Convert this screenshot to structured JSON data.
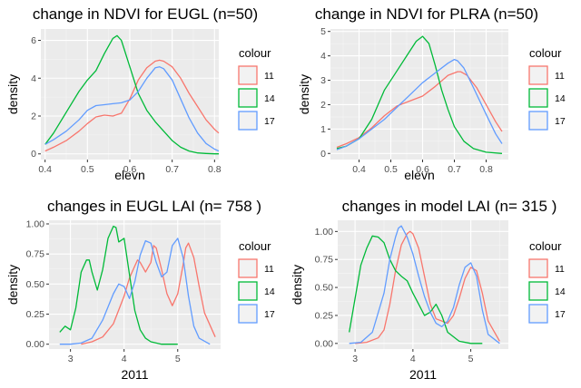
{
  "chart_data": [
    {
      "type": "line",
      "subtype": "density",
      "title": "change in NDVI for EUGL (n=50)",
      "xlabel": "elevn",
      "ylabel": "density",
      "xlim": [
        0.39,
        0.81
      ],
      "ylim": [
        -0.3,
        6.6
      ],
      "xticks": [
        0.4,
        0.5,
        0.6,
        0.7,
        0.8
      ],
      "xtick_labels": [
        "0.4",
        "0.5",
        "0.6",
        "0.7",
        "0.8"
      ],
      "yticks": [
        0,
        2,
        4,
        6
      ],
      "ytick_labels": [
        "0",
        "2",
        "4",
        "6"
      ],
      "grid": true,
      "legend": {
        "title": "colour",
        "position": "right",
        "entries": [
          "11",
          "14",
          "17"
        ]
      },
      "series": [
        {
          "name": "11",
          "color": "#F8766D",
          "x": [
            0.4,
            0.42,
            0.45,
            0.48,
            0.5,
            0.52,
            0.54,
            0.56,
            0.58,
            0.6,
            0.62,
            0.64,
            0.66,
            0.67,
            0.68,
            0.7,
            0.72,
            0.74,
            0.76,
            0.78,
            0.8,
            0.81
          ],
          "y": [
            0.15,
            0.35,
            0.7,
            1.2,
            1.6,
            1.95,
            2.05,
            2.0,
            2.15,
            2.9,
            3.9,
            4.55,
            4.9,
            4.95,
            4.9,
            4.6,
            4.0,
            3.2,
            2.5,
            1.8,
            1.3,
            1.1
          ]
        },
        {
          "name": "14",
          "color": "#00BA38",
          "x": [
            0.4,
            0.42,
            0.45,
            0.48,
            0.5,
            0.52,
            0.54,
            0.56,
            0.57,
            0.58,
            0.6,
            0.62,
            0.64,
            0.66,
            0.68,
            0.7,
            0.72,
            0.74,
            0.76,
            0.78,
            0.8,
            0.81
          ],
          "y": [
            0.5,
            1.1,
            2.2,
            3.3,
            3.9,
            4.4,
            5.3,
            6.1,
            6.25,
            6.0,
            4.6,
            3.2,
            2.3,
            1.7,
            1.2,
            0.7,
            0.35,
            0.15,
            0.05,
            0.02,
            0.0,
            0.0
          ]
        },
        {
          "name": "17",
          "color": "#619CFF",
          "x": [
            0.4,
            0.42,
            0.45,
            0.48,
            0.5,
            0.52,
            0.54,
            0.56,
            0.58,
            0.6,
            0.62,
            0.64,
            0.66,
            0.67,
            0.68,
            0.7,
            0.72,
            0.74,
            0.76,
            0.78,
            0.8,
            0.81
          ],
          "y": [
            0.5,
            0.75,
            1.2,
            1.8,
            2.3,
            2.55,
            2.6,
            2.65,
            2.7,
            2.85,
            3.3,
            4.0,
            4.55,
            4.6,
            4.5,
            3.9,
            2.9,
            1.9,
            1.1,
            0.55,
            0.25,
            0.15
          ]
        }
      ]
    },
    {
      "type": "line",
      "subtype": "density",
      "title": "change in NDVI for PLRA (n=50)",
      "xlabel": "elevn",
      "ylabel": "density",
      "xlim": [
        0.31,
        0.87
      ],
      "ylim": [
        -0.25,
        5.1
      ],
      "xticks": [
        0.4,
        0.5,
        0.6,
        0.7,
        0.8
      ],
      "xtick_labels": [
        "0.4",
        "0.5",
        "0.6",
        "0.7",
        "0.8"
      ],
      "yticks": [
        0,
        1,
        2,
        3,
        4,
        5
      ],
      "ytick_labels": [
        "0",
        "1",
        "2",
        "3",
        "4",
        "5"
      ],
      "grid": true,
      "legend": {
        "title": "colour",
        "position": "right",
        "entries": [
          "11",
          "14",
          "17"
        ]
      },
      "series": [
        {
          "name": "11",
          "color": "#F8766D",
          "x": [
            0.33,
            0.36,
            0.4,
            0.44,
            0.48,
            0.52,
            0.56,
            0.6,
            0.64,
            0.68,
            0.71,
            0.72,
            0.74,
            0.77,
            0.8,
            0.83,
            0.85
          ],
          "y": [
            0.25,
            0.4,
            0.65,
            1.05,
            1.55,
            1.95,
            2.15,
            2.35,
            2.75,
            3.2,
            3.35,
            3.35,
            3.2,
            2.7,
            2.0,
            1.3,
            0.9
          ]
        },
        {
          "name": "14",
          "color": "#00BA38",
          "x": [
            0.33,
            0.36,
            0.4,
            0.44,
            0.48,
            0.52,
            0.55,
            0.58,
            0.6,
            0.62,
            0.64,
            0.66,
            0.68,
            0.7,
            0.73,
            0.76,
            0.8,
            0.85
          ],
          "y": [
            0.2,
            0.3,
            0.6,
            1.4,
            2.6,
            3.4,
            4.0,
            4.6,
            4.8,
            4.5,
            3.6,
            2.6,
            1.8,
            1.1,
            0.5,
            0.2,
            0.05,
            0.0
          ]
        },
        {
          "name": "17",
          "color": "#619CFF",
          "x": [
            0.33,
            0.36,
            0.4,
            0.44,
            0.48,
            0.52,
            0.56,
            0.6,
            0.64,
            0.68,
            0.7,
            0.71,
            0.73,
            0.76,
            0.8,
            0.83,
            0.85
          ],
          "y": [
            0.15,
            0.3,
            0.6,
            1.0,
            1.4,
            1.9,
            2.4,
            2.9,
            3.3,
            3.7,
            3.85,
            3.8,
            3.5,
            2.7,
            1.6,
            0.8,
            0.4
          ]
        }
      ]
    },
    {
      "type": "line",
      "subtype": "density",
      "title": "changes in EUGL LAI (n= 758 )",
      "xlabel": "2011",
      "ylabel": "density",
      "xlim": [
        2.6,
        5.8
      ],
      "ylim": [
        -0.04,
        1.03
      ],
      "xticks": [
        3,
        4,
        5
      ],
      "xtick_labels": [
        "3",
        "4",
        "5"
      ],
      "yticks": [
        0,
        0.25,
        0.5,
        0.75,
        1.0
      ],
      "ytick_labels": [
        "0.00",
        "0.25",
        "0.50",
        "0.75",
        "1.00"
      ],
      "grid": true,
      "legend": {
        "title": "colour",
        "position": "right",
        "entries": [
          "11",
          "14",
          "17"
        ]
      },
      "series": [
        {
          "name": "11",
          "color": "#F8766D",
          "x": [
            3.2,
            3.4,
            3.6,
            3.8,
            4.0,
            4.1,
            4.2,
            4.25,
            4.3,
            4.4,
            4.5,
            4.55,
            4.6,
            4.7,
            4.8,
            4.9,
            5.0,
            5.1,
            5.15,
            5.2,
            5.3,
            5.4,
            5.5,
            5.7
          ],
          "y": [
            0.0,
            0.02,
            0.06,
            0.17,
            0.4,
            0.55,
            0.65,
            0.7,
            0.68,
            0.6,
            0.68,
            0.82,
            0.8,
            0.62,
            0.42,
            0.32,
            0.42,
            0.66,
            0.8,
            0.84,
            0.72,
            0.48,
            0.26,
            0.06
          ]
        },
        {
          "name": "14",
          "color": "#00BA38",
          "x": [
            2.8,
            2.9,
            3.0,
            3.1,
            3.2,
            3.3,
            3.35,
            3.4,
            3.5,
            3.6,
            3.7,
            3.8,
            3.85,
            3.9,
            4.0,
            4.1,
            4.2,
            4.3,
            4.4,
            4.5,
            4.6,
            4.7,
            5.0
          ],
          "y": [
            0.1,
            0.15,
            0.12,
            0.3,
            0.6,
            0.7,
            0.7,
            0.6,
            0.45,
            0.62,
            0.88,
            0.98,
            0.97,
            0.85,
            0.88,
            0.58,
            0.28,
            0.12,
            0.05,
            0.02,
            0.01,
            0.0,
            0.0
          ]
        },
        {
          "name": "17",
          "color": "#619CFF",
          "x": [
            2.8,
            3.0,
            3.2,
            3.4,
            3.6,
            3.8,
            3.9,
            4.0,
            4.1,
            4.2,
            4.3,
            4.4,
            4.5,
            4.6,
            4.7,
            4.8,
            4.9,
            5.0,
            5.1,
            5.2,
            5.3,
            5.4,
            5.6
          ],
          "y": [
            0.0,
            0.0,
            0.01,
            0.05,
            0.2,
            0.42,
            0.5,
            0.48,
            0.38,
            0.52,
            0.74,
            0.86,
            0.84,
            0.68,
            0.56,
            0.6,
            0.82,
            0.88,
            0.72,
            0.4,
            0.15,
            0.05,
            0.0
          ]
        }
      ]
    },
    {
      "type": "line",
      "subtype": "density",
      "title": "changes in model LAI (n= 315 )",
      "xlabel": "2011",
      "ylabel": "density",
      "xlim": [
        2.7,
        5.65
      ],
      "ylim": [
        -0.05,
        1.1
      ],
      "xticks": [
        3,
        4,
        5
      ],
      "xtick_labels": [
        "3",
        "4",
        "5"
      ],
      "yticks": [
        0,
        0.25,
        0.5,
        0.75,
        1.0
      ],
      "ytick_labels": [
        "0.00",
        "0.25",
        "0.50",
        "0.75",
        "1.00"
      ],
      "grid": true,
      "legend": {
        "title": "colour",
        "position": "right",
        "entries": [
          "11",
          "14",
          "17"
        ]
      },
      "series": [
        {
          "name": "11",
          "color": "#F8766D",
          "x": [
            3.0,
            3.2,
            3.4,
            3.5,
            3.6,
            3.7,
            3.8,
            3.9,
            3.95,
            4.0,
            4.1,
            4.2,
            4.3,
            4.4,
            4.5,
            4.6,
            4.7,
            4.8,
            4.9,
            5.0,
            5.1,
            5.2,
            5.3,
            5.5
          ],
          "y": [
            0.0,
            0.01,
            0.05,
            0.12,
            0.35,
            0.65,
            0.88,
            0.98,
            1.0,
            0.98,
            0.85,
            0.6,
            0.35,
            0.22,
            0.2,
            0.18,
            0.25,
            0.4,
            0.58,
            0.68,
            0.65,
            0.45,
            0.2,
            0.02
          ]
        },
        {
          "name": "14",
          "color": "#00BA38",
          "x": [
            2.9,
            3.0,
            3.1,
            3.2,
            3.3,
            3.4,
            3.5,
            3.6,
            3.7,
            3.8,
            3.9,
            4.0,
            4.1,
            4.2,
            4.3,
            4.4,
            4.5,
            4.6,
            4.8,
            5.0,
            5.2
          ],
          "y": [
            0.1,
            0.4,
            0.7,
            0.85,
            0.96,
            0.95,
            0.9,
            0.75,
            0.65,
            0.6,
            0.56,
            0.45,
            0.35,
            0.25,
            0.28,
            0.35,
            0.25,
            0.1,
            0.02,
            0.0,
            0.0
          ]
        },
        {
          "name": "17",
          "color": "#619CFF",
          "x": [
            2.9,
            3.1,
            3.3,
            3.5,
            3.6,
            3.7,
            3.75,
            3.8,
            3.85,
            3.9,
            4.0,
            4.1,
            4.2,
            4.3,
            4.4,
            4.5,
            4.6,
            4.7,
            4.8,
            4.9,
            5.0,
            5.1,
            5.2,
            5.3,
            5.5
          ],
          "y": [
            0.0,
            0.01,
            0.1,
            0.45,
            0.75,
            0.95,
            1.03,
            1.05,
            1.0,
            0.95,
            0.8,
            0.6,
            0.42,
            0.28,
            0.18,
            0.15,
            0.2,
            0.32,
            0.52,
            0.68,
            0.72,
            0.6,
            0.3,
            0.08,
            0.0
          ]
        }
      ]
    }
  ]
}
